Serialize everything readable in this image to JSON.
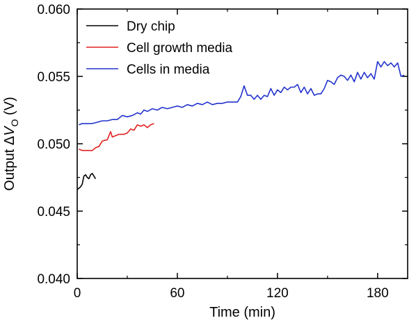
{
  "chart_data": {
    "type": "line",
    "xlabel": "Time (min)",
    "ylabel": {
      "prefix": "Output ",
      "delta": "Δ",
      "var": "V",
      "sub": "O",
      "unit": " (V)"
    },
    "xlim": [
      0,
      198
    ],
    "ylim": [
      0.04,
      0.06
    ],
    "x_ticks": [
      0,
      60,
      120,
      180
    ],
    "x_tick_labels": [
      "0",
      "60",
      "120",
      "180"
    ],
    "y_ticks": [
      0.04,
      0.045,
      0.05,
      0.055,
      0.06
    ],
    "y_tick_labels": [
      "0.040",
      "0.045",
      "0.050",
      "0.055",
      "0.060"
    ],
    "grid": false,
    "legend_position": "top-left",
    "series": [
      {
        "name": "Dry chip",
        "color": "#000000",
        "points": [
          [
            0,
            0.0466
          ],
          [
            2,
            0.0468
          ],
          [
            3,
            0.047
          ],
          [
            4,
            0.0476
          ],
          [
            5,
            0.0477
          ],
          [
            6,
            0.0475
          ],
          [
            7,
            0.0474
          ],
          [
            8,
            0.0477
          ],
          [
            9,
            0.0478
          ],
          [
            10,
            0.0476
          ],
          [
            11,
            0.0474
          ]
        ]
      },
      {
        "name": "Cell growth media",
        "color": "#e02020",
        "points": [
          [
            1,
            0.0496
          ],
          [
            3,
            0.0495
          ],
          [
            6,
            0.0495
          ],
          [
            9,
            0.0495
          ],
          [
            11,
            0.0497
          ],
          [
            13,
            0.0498
          ],
          [
            15,
            0.0502
          ],
          [
            18,
            0.0503
          ],
          [
            20,
            0.0509
          ],
          [
            21,
            0.0505
          ],
          [
            23,
            0.0506
          ],
          [
            25,
            0.0507
          ],
          [
            28,
            0.0507
          ],
          [
            30,
            0.0508
          ],
          [
            32,
            0.0511
          ],
          [
            34,
            0.051
          ],
          [
            36,
            0.0514
          ],
          [
            38,
            0.0513
          ],
          [
            40,
            0.0514
          ],
          [
            42,
            0.0512
          ],
          [
            44,
            0.0514
          ],
          [
            46,
            0.0515
          ]
        ]
      },
      {
        "name": "Cells in media",
        "color": "#2233cc",
        "points": [
          [
            1,
            0.0514
          ],
          [
            3,
            0.0515
          ],
          [
            6,
            0.0515
          ],
          [
            9,
            0.0515
          ],
          [
            12,
            0.0516
          ],
          [
            15,
            0.0517
          ],
          [
            18,
            0.0517
          ],
          [
            21,
            0.0518
          ],
          [
            24,
            0.0518
          ],
          [
            27,
            0.0521
          ],
          [
            30,
            0.052
          ],
          [
            33,
            0.0521
          ],
          [
            36,
            0.0523
          ],
          [
            38,
            0.0522
          ],
          [
            40,
            0.0525
          ],
          [
            42,
            0.0524
          ],
          [
            45,
            0.0526
          ],
          [
            48,
            0.0525
          ],
          [
            51,
            0.0527
          ],
          [
            54,
            0.0526
          ],
          [
            57,
            0.0527
          ],
          [
            60,
            0.0528
          ],
          [
            63,
            0.0527
          ],
          [
            66,
            0.0529
          ],
          [
            69,
            0.0528
          ],
          [
            72,
            0.053
          ],
          [
            75,
            0.0529
          ],
          [
            78,
            0.0531
          ],
          [
            81,
            0.0529
          ],
          [
            84,
            0.053
          ],
          [
            87,
            0.053
          ],
          [
            90,
            0.0531
          ],
          [
            93,
            0.0531
          ],
          [
            96,
            0.0531
          ],
          [
            98,
            0.0535
          ],
          [
            100,
            0.0543
          ],
          [
            102,
            0.0536
          ],
          [
            104,
            0.0536
          ],
          [
            106,
            0.0533
          ],
          [
            108,
            0.0536
          ],
          [
            110,
            0.0533
          ],
          [
            112,
            0.0536
          ],
          [
            114,
            0.0535
          ],
          [
            116,
            0.0541
          ],
          [
            118,
            0.0536
          ],
          [
            120,
            0.054
          ],
          [
            122,
            0.0538
          ],
          [
            124,
            0.0542
          ],
          [
            126,
            0.054
          ],
          [
            128,
            0.0542
          ],
          [
            130,
            0.0542
          ],
          [
            132,
            0.0544
          ],
          [
            134,
            0.0538
          ],
          [
            136,
            0.0542
          ],
          [
            138,
            0.0537
          ],
          [
            140,
            0.0541
          ],
          [
            142,
            0.0536
          ],
          [
            144,
            0.0537
          ],
          [
            146,
            0.0537
          ],
          [
            148,
            0.0541
          ],
          [
            150,
            0.0547
          ],
          [
            152,
            0.0546
          ],
          [
            154,
            0.0544
          ],
          [
            156,
            0.0549
          ],
          [
            158,
            0.0551
          ],
          [
            160,
            0.055
          ],
          [
            162,
            0.0547
          ],
          [
            164,
            0.0551
          ],
          [
            166,
            0.0546
          ],
          [
            168,
            0.0553
          ],
          [
            170,
            0.0548
          ],
          [
            172,
            0.0553
          ],
          [
            174,
            0.0549
          ],
          [
            176,
            0.0552
          ],
          [
            178,
            0.0548
          ],
          [
            180,
            0.0561
          ],
          [
            182,
            0.0557
          ],
          [
            184,
            0.0561
          ],
          [
            186,
            0.0558
          ],
          [
            188,
            0.056
          ],
          [
            190,
            0.0557
          ],
          [
            192,
            0.056
          ],
          [
            194,
            0.055
          ],
          [
            196,
            0.0551
          ]
        ]
      }
    ]
  }
}
